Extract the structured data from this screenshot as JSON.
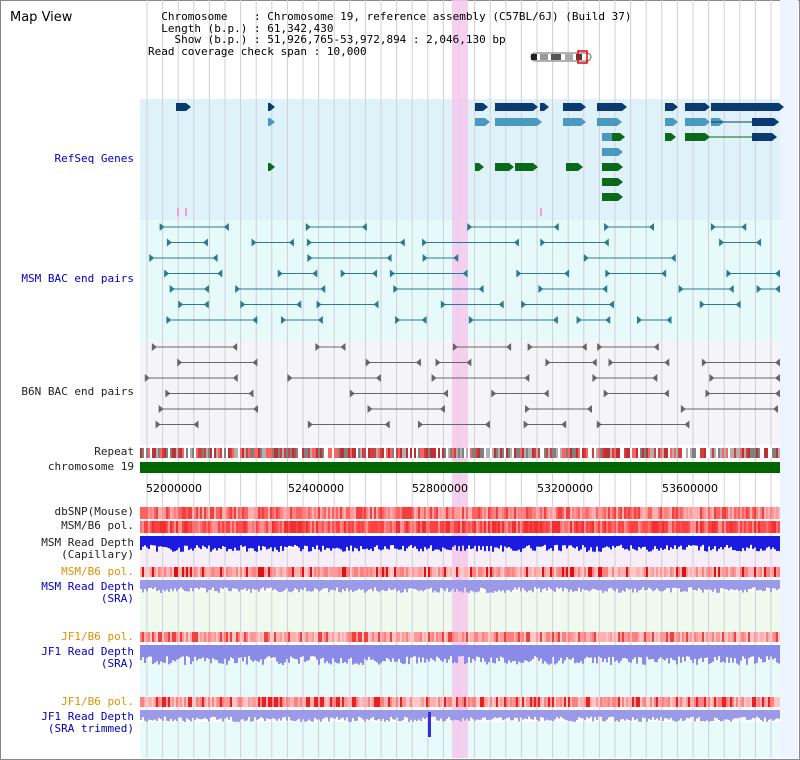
{
  "title": "Map View",
  "header": {
    "chromosome_label": "Chromosome",
    "chromosome_value": "Chromosome 19, reference assembly (C57BL/6J) (Build 37)",
    "length_label": "Length (b.p.)",
    "length_value": "61,342,430",
    "show_label": "Show (b.p.)",
    "show_value": "51,926,765-53,972,894 : 2,046,130 bp",
    "coverage_label": "Read coverage check span",
    "coverage_value": "10,000"
  },
  "tracks": {
    "refseq": "RefSeq Genes",
    "msm_bac": "MSM BAC end pairs",
    "b6n_bac": "B6N BAC end pairs",
    "repeat": "Repeat",
    "chromosome": "chromosome 19",
    "dbsnp": "dbSNP(Mouse)",
    "msm_pol": "MSM/B6 pol.",
    "msm_depth_cap_1": "MSM Read Depth",
    "msm_depth_cap_2": "(Capillary)",
    "msm_pol_2": "MSM/B6 pol.",
    "msm_depth_sra_1": "MSM Read Depth",
    "msm_depth_sra_2": "(SRA)",
    "jf1_pol": "JF1/B6 pol.",
    "jf1_depth_1": "JF1 Read Depth",
    "jf1_depth_2": "(SRA)",
    "jf1_pol_2": "JF1/B6 pol.",
    "jf1_trim_1": "JF1 Read Depth",
    "jf1_trim_2": "(SRA trimmed)"
  },
  "axis_ticks": [
    "52000000",
    "52400000",
    "52800000",
    "53200000",
    "53600000"
  ],
  "colors": {
    "refseq_bg": "#dff2fa",
    "bac_bg": "#e6fafa",
    "b6n_bg": "#f5f5f9",
    "gene_dark": "#0a3a70",
    "gene_mid": "#4a9ac0",
    "gene_green": "#0a6a18",
    "highlight": "#f4c8ec",
    "chromosome_bar": "#006600"
  }
}
